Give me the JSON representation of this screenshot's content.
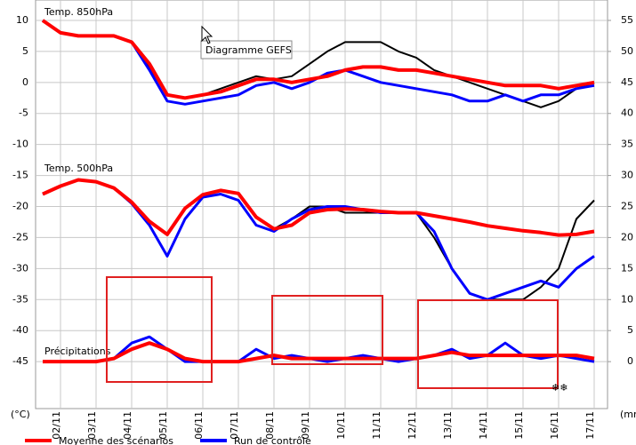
{
  "chart_data": {
    "type": "line",
    "tooltip": "Diagramme GEFS",
    "y_unit": "(°C)",
    "y2_unit": "(mm)",
    "xlim": [
      1.3,
      17.375
    ],
    "xticks": [
      {
        "value": 2,
        "label": "02/11"
      },
      {
        "value": 3,
        "label": "03/11"
      },
      {
        "value": 4,
        "label": "04/11"
      },
      {
        "value": 5,
        "label": "05/11"
      },
      {
        "value": 6,
        "label": "06/11"
      },
      {
        "value": 7,
        "label": "07/11"
      },
      {
        "value": 8,
        "label": "08/11"
      },
      {
        "value": 9,
        "label": "09/11"
      },
      {
        "value": 10,
        "label": "10/11"
      },
      {
        "value": 11,
        "label": "11/11"
      },
      {
        "value": 12,
        "label": "12/11"
      },
      {
        "value": 13,
        "label": "13/11"
      },
      {
        "value": 14,
        "label": "14/11"
      },
      {
        "value": 15,
        "label": "15/11"
      },
      {
        "value": 16,
        "label": "16/11"
      },
      {
        "value": 17,
        "label": "17/11"
      }
    ],
    "ylim": [
      -52.57,
      13.29
    ],
    "yticks": [
      10,
      5,
      0,
      -5,
      -10,
      -15,
      -20,
      -25,
      -30,
      -35,
      -40,
      -45
    ],
    "y2lim": [
      -7.57,
      58.29
    ],
    "y2ticks": [
      55,
      50,
      45,
      40,
      35,
      30,
      25,
      20,
      15,
      10,
      5,
      0
    ],
    "grid": true,
    "x": [
      1.5,
      2,
      2.5,
      3,
      3.5,
      4,
      4.5,
      5,
      5.5,
      6,
      6.5,
      7,
      7.5,
      8,
      8.5,
      9,
      9.5,
      10,
      10.5,
      11,
      11.5,
      12,
      12.5,
      13,
      13.5,
      14,
      14.5,
      15,
      15.5,
      16,
      16.5,
      17
    ],
    "legend": [
      {
        "name": "Moyenne des scénarios",
        "color": "#ff0000"
      },
      {
        "name": "Run de contrôle",
        "color": "#0000ff"
      }
    ],
    "panels": [
      {
        "label": "Temp. 850hPa",
        "axis": "y",
        "series": [
          {
            "color": "#000000",
            "width": 2,
            "values": [
              10,
              8,
              7.5,
              7.5,
              7.5,
              6.5,
              2.5,
              -2,
              -2.5,
              -2,
              -1,
              0,
              1,
              0.5,
              1,
              3,
              5,
              6.5,
              6.5,
              6.5,
              5,
              4,
              2,
              1,
              0,
              -1,
              -2,
              -3,
              -4,
              -3,
              -1,
              0
            ]
          },
          {
            "color": "#0000ff",
            "width": 3,
            "values": [
              10,
              8,
              7.5,
              7.5,
              7.5,
              6.5,
              2,
              -3,
              -3.5,
              -3,
              -2.5,
              -2,
              -0.5,
              0,
              -1,
              0,
              1.5,
              2,
              1,
              0,
              -0.5,
              -1,
              -1.5,
              -2,
              -3,
              -3,
              -2,
              -3,
              -2,
              -2,
              -1,
              -0.5
            ]
          },
          {
            "color": "#ff0000",
            "width": 4,
            "values": [
              10,
              8,
              7.5,
              7.5,
              7.5,
              6.5,
              3,
              -2,
              -2.5,
              -2,
              -1.5,
              -0.5,
              0.5,
              0.5,
              0,
              0.5,
              1,
              2,
              2.5,
              2.5,
              2,
              2,
              1.5,
              1,
              0.5,
              0,
              -0.5,
              -0.5,
              -0.5,
              -1,
              -0.5,
              0
            ]
          }
        ]
      },
      {
        "label": "Temp. 500hPa",
        "axis": "y",
        "series": [
          {
            "color": "#000000",
            "width": 2,
            "values": [
              -18,
              -16.7,
              -15.7,
              -16,
              -17,
              -19.3,
              -22.4,
              -24.5,
              -20.3,
              -18.1,
              -17.4,
              -17.9,
              -21.7,
              -23.6,
              -22,
              -20,
              -20,
              -21,
              -21,
              -21,
              -21,
              -21,
              -25,
              -30,
              -34,
              -35,
              -35,
              -35,
              -33,
              -30,
              -22,
              -19
            ]
          },
          {
            "color": "#0000ff",
            "width": 3,
            "values": [
              -18,
              -16.7,
              -15.7,
              -16,
              -17,
              -19.5,
              -23,
              -28,
              -22,
              -18.5,
              -18,
              -19,
              -23,
              -24,
              -22,
              -20.5,
              -20,
              -20,
              -20.5,
              -21,
              -21,
              -21,
              -24,
              -30,
              -34,
              -35,
              -34,
              -33,
              -32,
              -33,
              -30,
              -28
            ]
          },
          {
            "color": "#ff0000",
            "width": 4,
            "values": [
              -18,
              -16.7,
              -15.7,
              -16,
              -17,
              -19.3,
              -22.4,
              -24.5,
              -20.3,
              -18.1,
              -17.4,
              -17.9,
              -21.7,
              -23.6,
              -23,
              -21,
              -20.5,
              -20.4,
              -20.5,
              -20.8,
              -21,
              -21,
              -21.5,
              -22,
              -22.5,
              -23.1,
              -23.5,
              -23.9,
              -24.2,
              -24.6,
              -24.5,
              -24
            ]
          }
        ]
      },
      {
        "label": "Précipitations",
        "axis": "y2",
        "series": [
          {
            "color": "#0000ff",
            "width": 3,
            "values": [
              0,
              0,
              0,
              0,
              0.5,
              3,
              4,
              2,
              0,
              0,
              0,
              0,
              2,
              0.5,
              1,
              0.5,
              0,
              0.5,
              1,
              0.5,
              0,
              0.5,
              1,
              2,
              0.5,
              1,
              3,
              1,
              0.5,
              1,
              0.5,
              0
            ]
          },
          {
            "color": "#ff0000",
            "width": 4,
            "values": [
              0,
              0,
              0,
              0,
              0.5,
              2,
              3,
              2,
              0.5,
              0,
              0,
              0,
              0.5,
              1,
              0.5,
              0.5,
              0.5,
              0.5,
              0.5,
              0.5,
              0.5,
              0.5,
              1,
              1.5,
              1,
              1,
              1,
              1,
              1,
              1,
              1,
              0.5
            ]
          }
        ]
      }
    ]
  }
}
